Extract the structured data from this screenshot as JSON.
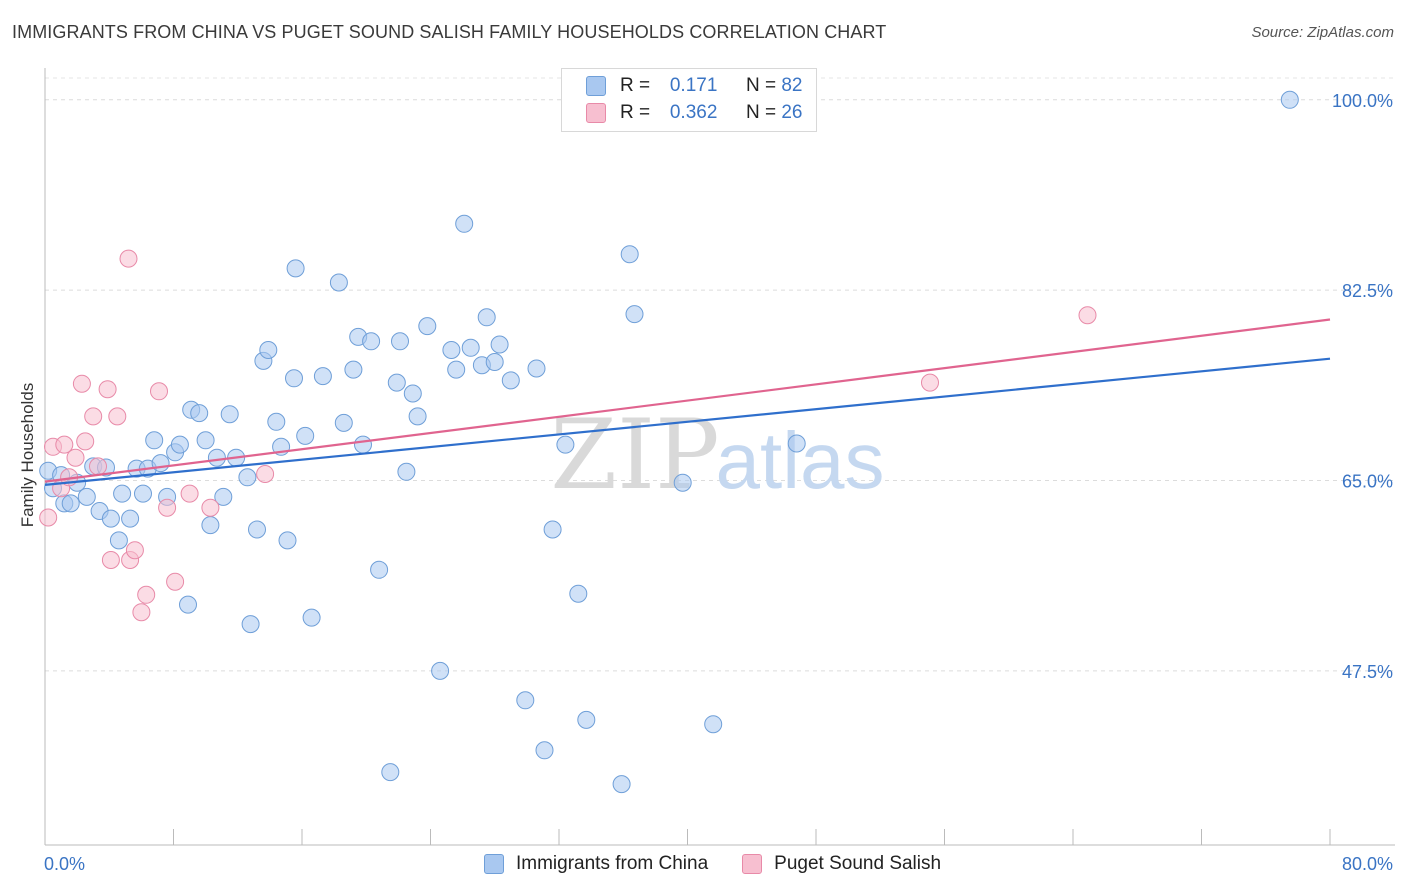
{
  "title": "IMMIGRANTS FROM CHINA VS PUGET SOUND SALISH FAMILY HOUSEHOLDS CORRELATION CHART",
  "source": "Source: ZipAtlas.com",
  "watermark": {
    "zip": "ZIP",
    "atlas": "atlas"
  },
  "legend": {
    "rows": [
      {
        "r_label": "R =",
        "r_value": "0.171",
        "n_label": "N =",
        "n_value": "82",
        "color": "#a9c8f0",
        "border": "#6f9fd8"
      },
      {
        "r_label": "R =",
        "r_value": "0.362",
        "n_label": "N =",
        "n_value": "26",
        "color": "#f7bfd0",
        "border": "#e88aa8"
      }
    ]
  },
  "bottom_legend": [
    {
      "label": "Immigrants from China",
      "color": "#a9c8f0",
      "border": "#6f9fd8"
    },
    {
      "label": "Puget Sound Salish",
      "color": "#f7bfd0",
      "border": "#e88aa8"
    }
  ],
  "chart_data": {
    "type": "scatter",
    "title": "IMMIGRANTS FROM CHINA VS PUGET SOUND SALISH FAMILY HOUSEHOLDS CORRELATION CHART",
    "xlabel": "",
    "ylabel": "Family Households",
    "xlim": [
      0,
      80
    ],
    "ylim": [
      31.5,
      102
    ],
    "x_tick_labels": {
      "left": "0.0%",
      "right": "80.0%"
    },
    "y_ticks": [
      {
        "value": 100.0,
        "label": "100.0%"
      },
      {
        "value": 82.5,
        "label": "82.5%"
      },
      {
        "value": 65.0,
        "label": "65.0%"
      },
      {
        "value": 47.5,
        "label": "47.5%"
      }
    ],
    "grid": true,
    "legend_position": "top-center",
    "series": [
      {
        "name": "Immigrants from China",
        "color": "#a9c8f0",
        "stroke": "#6f9fd8",
        "trend_color": "#2f6fcc",
        "trend": {
          "x": [
            0,
            80
          ],
          "y": [
            64.6,
            76.2
          ]
        },
        "points": [
          [
            0.2,
            65.9
          ],
          [
            0.5,
            64.3
          ],
          [
            1.0,
            65.5
          ],
          [
            1.2,
            62.9
          ],
          [
            1.6,
            62.9
          ],
          [
            2.0,
            64.8
          ],
          [
            2.6,
            63.5
          ],
          [
            3.0,
            66.3
          ],
          [
            3.4,
            62.2
          ],
          [
            3.8,
            66.2
          ],
          [
            4.1,
            61.5
          ],
          [
            4.6,
            59.5
          ],
          [
            4.8,
            63.8
          ],
          [
            5.3,
            61.5
          ],
          [
            5.7,
            66.1
          ],
          [
            6.1,
            63.8
          ],
          [
            6.4,
            66.1
          ],
          [
            6.8,
            68.7
          ],
          [
            7.2,
            66.6
          ],
          [
            7.6,
            63.5
          ],
          [
            8.1,
            67.6
          ],
          [
            8.4,
            68.3
          ],
          [
            8.9,
            53.6
          ],
          [
            9.1,
            71.5
          ],
          [
            9.6,
            71.2
          ],
          [
            10.0,
            68.7
          ],
          [
            10.3,
            60.9
          ],
          [
            10.7,
            67.1
          ],
          [
            11.1,
            63.5
          ],
          [
            11.5,
            71.1
          ],
          [
            11.9,
            67.1
          ],
          [
            12.6,
            65.3
          ],
          [
            12.8,
            51.8
          ],
          [
            13.2,
            60.5
          ],
          [
            13.6,
            76.0
          ],
          [
            13.9,
            77.0
          ],
          [
            14.4,
            70.4
          ],
          [
            14.7,
            68.1
          ],
          [
            15.1,
            59.5
          ],
          [
            15.5,
            74.4
          ],
          [
            15.6,
            84.5
          ],
          [
            16.2,
            69.1
          ],
          [
            16.6,
            52.4
          ],
          [
            17.3,
            74.6
          ],
          [
            18.3,
            83.2
          ],
          [
            18.6,
            70.3
          ],
          [
            19.2,
            75.2
          ],
          [
            19.5,
            78.2
          ],
          [
            19.8,
            68.3
          ],
          [
            20.3,
            77.8
          ],
          [
            20.8,
            56.8
          ],
          [
            21.5,
            38.2
          ],
          [
            21.9,
            74.0
          ],
          [
            22.1,
            77.8
          ],
          [
            22.5,
            65.8
          ],
          [
            22.9,
            73.0
          ],
          [
            23.2,
            70.9
          ],
          [
            23.8,
            79.2
          ],
          [
            24.6,
            47.5
          ],
          [
            25.3,
            77.0
          ],
          [
            25.6,
            75.2
          ],
          [
            26.1,
            88.6
          ],
          [
            26.5,
            77.2
          ],
          [
            27.2,
            75.6
          ],
          [
            27.5,
            80.0
          ],
          [
            28.0,
            75.9
          ],
          [
            28.3,
            77.5
          ],
          [
            29.0,
            74.2
          ],
          [
            29.9,
            44.8
          ],
          [
            30.6,
            75.3
          ],
          [
            31.1,
            40.2
          ],
          [
            31.6,
            60.5
          ],
          [
            32.4,
            68.3
          ],
          [
            33.2,
            54.6
          ],
          [
            33.7,
            43.0
          ],
          [
            35.9,
            37.1
          ],
          [
            36.4,
            85.8
          ],
          [
            36.7,
            80.3
          ],
          [
            39.7,
            64.8
          ],
          [
            41.6,
            42.6
          ],
          [
            46.8,
            68.4
          ],
          [
            77.5,
            100.0
          ]
        ]
      },
      {
        "name": "Puget Sound Salish",
        "color": "#f7bfd0",
        "stroke": "#e88aa8",
        "trend_color": "#e0648f",
        "trend": {
          "x": [
            0,
            80
          ],
          "y": [
            64.9,
            79.8
          ]
        },
        "points": [
          [
            0.2,
            61.6
          ],
          [
            0.5,
            68.1
          ],
          [
            1.0,
            64.3
          ],
          [
            1.2,
            68.3
          ],
          [
            1.5,
            65.3
          ],
          [
            1.9,
            67.1
          ],
          [
            2.3,
            73.9
          ],
          [
            2.5,
            68.6
          ],
          [
            3.0,
            70.9
          ],
          [
            3.3,
            66.3
          ],
          [
            3.9,
            73.4
          ],
          [
            4.1,
            57.7
          ],
          [
            4.5,
            70.9
          ],
          [
            5.2,
            85.4
          ],
          [
            5.3,
            57.7
          ],
          [
            5.6,
            58.6
          ],
          [
            6.0,
            52.9
          ],
          [
            6.3,
            54.5
          ],
          [
            7.1,
            73.2
          ],
          [
            7.6,
            62.5
          ],
          [
            8.1,
            55.7
          ],
          [
            9.0,
            63.8
          ],
          [
            10.3,
            62.5
          ],
          [
            13.7,
            65.6
          ],
          [
            55.1,
            74.0
          ],
          [
            64.9,
            80.2
          ]
        ]
      }
    ]
  }
}
